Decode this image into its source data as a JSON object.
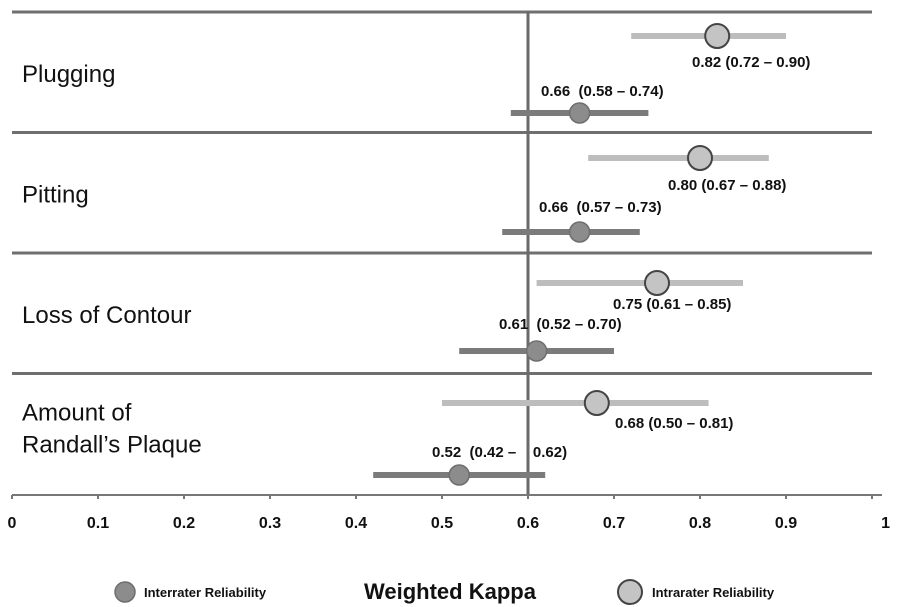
{
  "chart_data": {
    "type": "forest",
    "xlabel": "Weighted Kappa",
    "xlim": [
      0,
      1
    ],
    "reference_line": 0.6,
    "x_ticks": [
      "0",
      "0.1",
      "0.2",
      "0.3",
      "0.4",
      "0.5",
      "0.6",
      "0.7",
      "0.8",
      "0.9",
      "1"
    ],
    "categories": [
      [
        "Plugging"
      ],
      [
        "Pitting"
      ],
      [
        "Loss of Contour"
      ],
      [
        "Amount of",
        "Randall’s Plaque"
      ]
    ],
    "series": [
      {
        "name": "Intrarater Reliability",
        "color": "#c4c4c4",
        "line_color": "#bdbdbd",
        "points": [
          {
            "value": 0.82,
            "low": 0.72,
            "high": 0.9,
            "label": "0.82  (0.72 – 0.90)"
          },
          {
            "value": 0.8,
            "low": 0.67,
            "high": 0.88,
            "label": "0.80  (0.67 – 0.88)"
          },
          {
            "value": 0.75,
            "low": 0.61,
            "high": 0.85,
            "label": "0.75  (0.61 – 0.85)"
          },
          {
            "value": 0.68,
            "low": 0.5,
            "high": 0.81,
            "label": "0.68  (0.50 – 0.81)"
          }
        ]
      },
      {
        "name": "Interrater Reliability",
        "color": "#8c8c8c",
        "line_color": "#7b7b7b",
        "points": [
          {
            "value": 0.66,
            "low": 0.58,
            "high": 0.74,
            "label": "0.66  (0.58 – 0.74)"
          },
          {
            "value": 0.66,
            "low": 0.57,
            "high": 0.73,
            "label": "0.66  (0.57 – 0.73)"
          },
          {
            "value": 0.61,
            "low": 0.52,
            "high": 0.7,
            "label": "0.61  (0.52 – 0.70)"
          },
          {
            "value": 0.52,
            "low": 0.42,
            "high": 0.62,
            "label": "0.52  (0.42 –    0.62)"
          }
        ]
      }
    ],
    "legend": {
      "placement": "bottom",
      "left_label": "Interrater Reliability",
      "right_label": "Intrarater Reliability"
    }
  }
}
